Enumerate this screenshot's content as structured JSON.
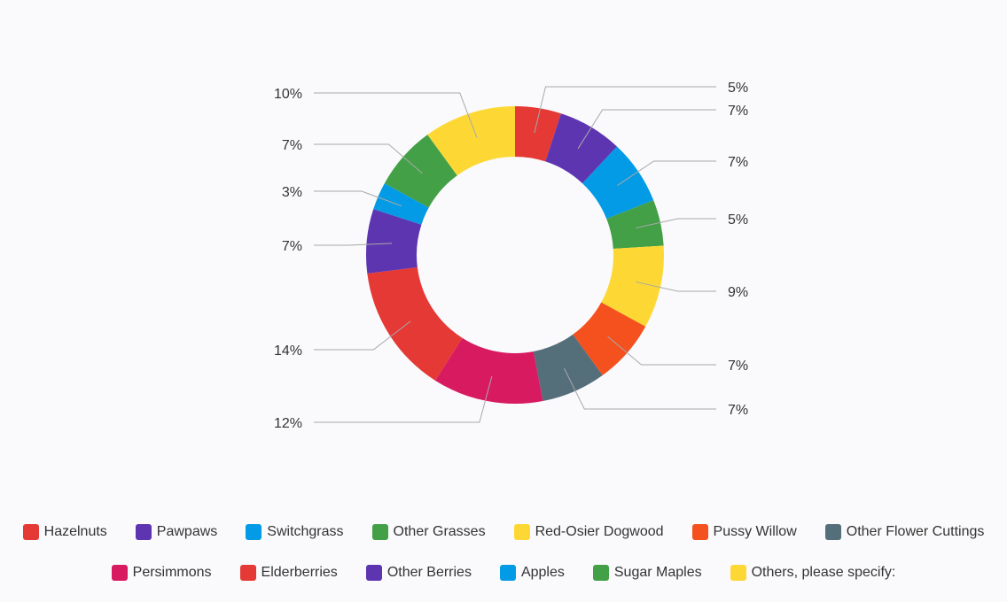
{
  "chart_data": {
    "type": "pie",
    "donut": true,
    "title": "",
    "legend_position": "bottom",
    "slices": [
      {
        "name": "Hazelnuts",
        "value": 5,
        "label": "5%",
        "color": "#E53935"
      },
      {
        "name": "Pawpaws",
        "value": 7,
        "label": "7%",
        "color": "#5E35B1"
      },
      {
        "name": "Switchgrass",
        "value": 7,
        "label": "7%",
        "color": "#039BE5"
      },
      {
        "name": "Other Grasses",
        "value": 5,
        "label": "5%",
        "color": "#43A047"
      },
      {
        "name": "Red-Osier Dogwood",
        "value": 9,
        "label": "9%",
        "color": "#FDD835"
      },
      {
        "name": "Pussy Willow",
        "value": 7,
        "label": "7%",
        "color": "#F4511E"
      },
      {
        "name": "Other Flower Cuttings",
        "value": 7,
        "label": "7%",
        "color": "#546E7A"
      },
      {
        "name": "Persimmons",
        "value": 12,
        "label": "12%",
        "color": "#D81B60"
      },
      {
        "name": "Elderberries",
        "value": 14,
        "label": "14%",
        "color": "#E53935"
      },
      {
        "name": "Other Berries",
        "value": 7,
        "label": "7%",
        "color": "#5E35B1"
      },
      {
        "name": "Apples",
        "value": 3,
        "label": "3%",
        "color": "#039BE5"
      },
      {
        "name": "Sugar Maples",
        "value": 7,
        "label": "7%",
        "color": "#43A047"
      },
      {
        "name": "Others, please specify:",
        "value": 10,
        "label": "10%",
        "color": "#FDD835"
      }
    ]
  }
}
